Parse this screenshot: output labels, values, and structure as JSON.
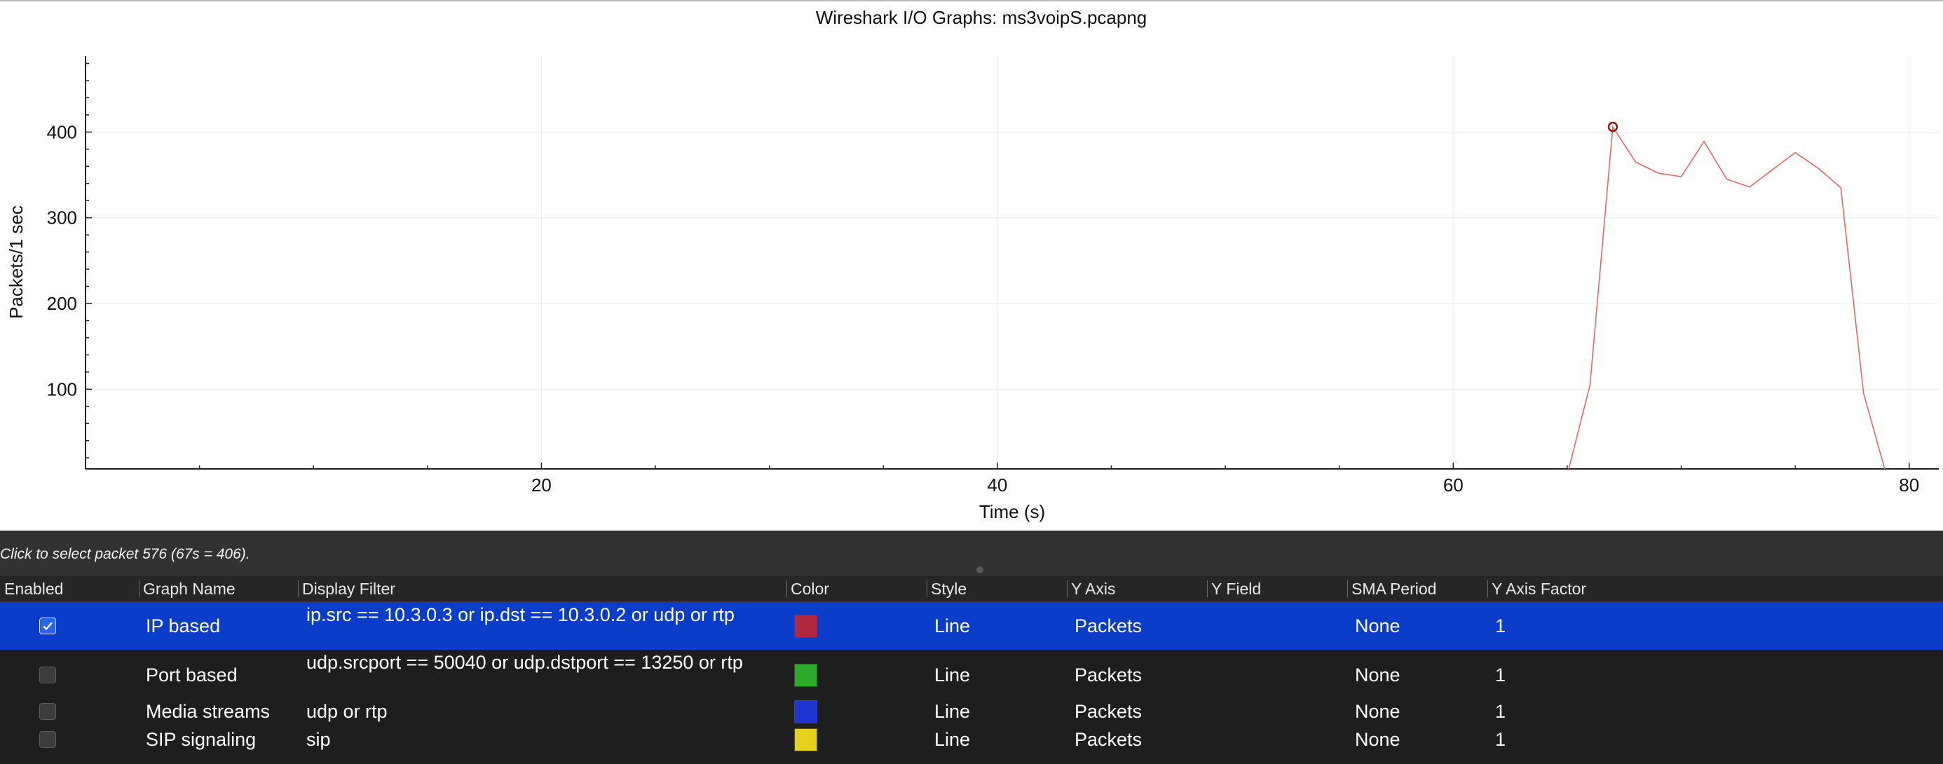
{
  "window": {
    "title": "Wireshark I/O Graphs: ms3voipS.pcapng"
  },
  "chart_data": {
    "type": "line",
    "title": "Wireshark I/O Graphs: ms3voipS.pcapng",
    "xlabel": "Time (s)",
    "ylabel": "Packets/1 sec",
    "xlim": [
      0,
      81.3
    ],
    "ylim": [
      7,
      487
    ],
    "x_ticks": [
      20,
      40,
      60,
      80
    ],
    "y_ticks": [
      100,
      200,
      300,
      400
    ],
    "grid": true,
    "series": [
      {
        "color": "#e26868",
        "x": [
          0,
          64,
          65,
          66,
          67,
          68,
          69,
          70,
          71,
          72,
          73,
          74,
          75,
          76,
          77,
          78,
          79
        ],
        "y": [
          0,
          0,
          0,
          105,
          406,
          365,
          352,
          348,
          389,
          345,
          336,
          356,
          376,
          358,
          335,
          95,
          0
        ]
      }
    ],
    "selected_point": {
      "x": 67,
      "y": 406
    }
  },
  "status": {
    "text": "Click to select packet 576 (67s = 406)."
  },
  "table": {
    "headers": [
      "Enabled",
      "Graph Name",
      "Display Filter",
      "Color",
      "Style",
      "Y Axis",
      "Y Field",
      "SMA Period",
      "Y Axis Factor"
    ],
    "rows": [
      {
        "enabled": true,
        "name": "IP based",
        "filter": "ip.src == 10.3.0.3 or ip.dst == 10.3.0.2 or udp or rtp",
        "color": "#b0283e",
        "style": "Line",
        "y_axis": "Packets",
        "y_field": "",
        "sma": "None",
        "factor": "1"
      },
      {
        "enabled": false,
        "name": "Port based",
        "filter": "udp.srcport == 50040 or udp.dstport == 13250 or rtp",
        "color": "#2eaa2a",
        "style": "Line",
        "y_axis": "Packets",
        "y_field": "",
        "sma": "None",
        "factor": "1"
      },
      {
        "enabled": false,
        "name": "Media streams",
        "filter": "udp or rtp",
        "color": "#1e34d0",
        "style": "Line",
        "y_axis": "Packets",
        "y_field": "",
        "sma": "None",
        "factor": "1"
      },
      {
        "enabled": false,
        "name": "SIP signaling",
        "filter": "sip",
        "color": "#e6d21e",
        "style": "Line",
        "y_axis": "Packets",
        "y_field": "",
        "sma": "None",
        "factor": "1"
      }
    ]
  }
}
